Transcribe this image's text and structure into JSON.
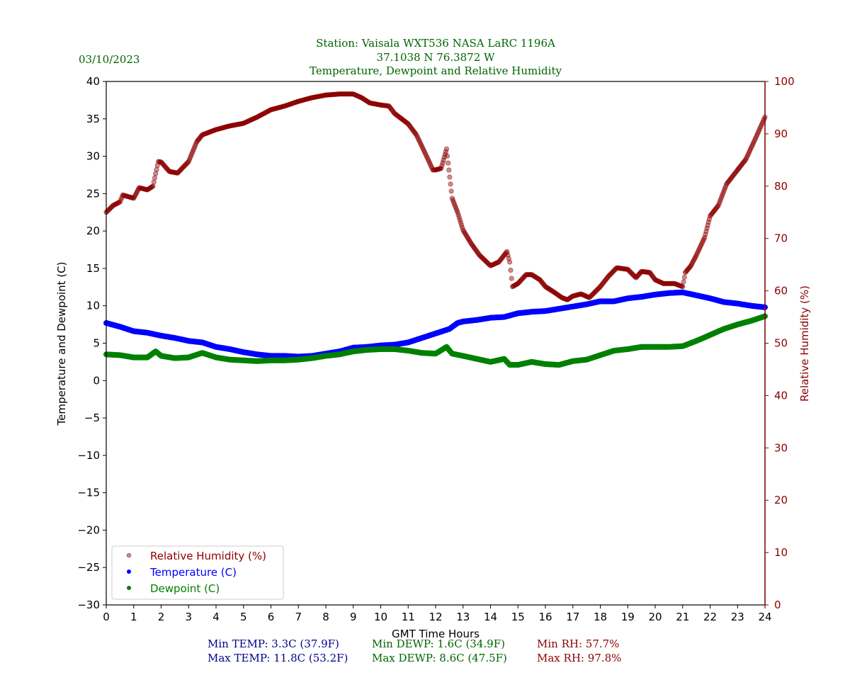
{
  "header": {
    "date": "03/10/2023",
    "title_line1": "Station:  Vaisala WXT536  NASA LaRC 1196A",
    "title_line2": "37.1038 N 76.3872 W",
    "title_line3": "Temperature, Dewpoint and Relative Humidity"
  },
  "stats": {
    "min_temp": "Min TEMP: 3.3C (37.9F)",
    "max_temp": "Max TEMP: 11.8C (53.2F)",
    "min_dewp": "Min DEWP: 1.6C (34.9F)",
    "max_dewp": "Max DEWP: 8.6C (47.5F)",
    "min_rh": "Min RH: 57.7%",
    "max_rh": "Max RH: 97.8%"
  },
  "colors": {
    "title": "#006400",
    "temperature": "#0000ff",
    "dewpoint": "#008000",
    "rh": "#8b0000",
    "stats_temp": "#00008b"
  },
  "chart_data": {
    "type": "scatter",
    "title": "Temperature, Dewpoint and Relative Humidity",
    "xlabel": "GMT Time Hours",
    "ylabel": "Temperature and Dewpoint (C)",
    "y2label": "Relative Humidity (%)",
    "xlim": [
      0,
      24
    ],
    "ylim": [
      -30,
      40
    ],
    "y2lim": [
      0,
      100
    ],
    "x_ticks": [
      "0",
      "1",
      "2",
      "3",
      "4",
      "5",
      "6",
      "7",
      "8",
      "9",
      "10",
      "11",
      "12",
      "13",
      "14",
      "15",
      "16",
      "17",
      "18",
      "19",
      "20",
      "21",
      "22",
      "23",
      "24"
    ],
    "y_ticks": [
      "40",
      "35",
      "30",
      "25",
      "20",
      "15",
      "10",
      "5",
      "0",
      "−5",
      "−10",
      "−15",
      "−20",
      "−25",
      "−30"
    ],
    "y2_ticks": [
      "100",
      "90",
      "80",
      "70",
      "60",
      "50",
      "40",
      "30",
      "20",
      "10",
      "0"
    ],
    "grid": false,
    "legend_position": "lower-left",
    "legend": [
      "Relative Humidity (%)",
      "Temperature (C)",
      "Dewpoint (C)"
    ],
    "series": [
      {
        "name": "Relative Humidity (%)",
        "axis": "right",
        "x": [
          0,
          0.25,
          0.5,
          0.6,
          1,
          1.2,
          1.5,
          1.7,
          1.8,
          1.9,
          2,
          2.3,
          2.6,
          3,
          3.3,
          3.5,
          4,
          4.5,
          5,
          5.5,
          6,
          6.5,
          7,
          7.5,
          8,
          8.5,
          9,
          9.3,
          9.6,
          10,
          10.3,
          10.5,
          11,
          11.3,
          11.6,
          11.9,
          12,
          12.2,
          12.4,
          12.6,
          12.8,
          13,
          13.3,
          13.6,
          14,
          14.3,
          14.6,
          14.7,
          14.8,
          15,
          15.3,
          15.5,
          15.8,
          16,
          16.3,
          16.6,
          16.8,
          17,
          17.3,
          17.6,
          18,
          18.3,
          18.6,
          19,
          19.3,
          19.5,
          19.8,
          20,
          20.3,
          20.7,
          21,
          21.1,
          21.3,
          21.5,
          21.8,
          22,
          22.3,
          22.6,
          23,
          23.3,
          23.6,
          24
        ],
        "y": [
          75,
          76.3,
          77,
          78.3,
          77.7,
          79.7,
          79.3,
          80,
          82.4,
          84.7,
          84.6,
          82.8,
          82.5,
          84.7,
          88.5,
          89.8,
          90.8,
          91.5,
          92,
          93.2,
          94.6,
          95.3,
          96.2,
          96.9,
          97.4,
          97.6,
          97.6,
          96.9,
          95.9,
          95.5,
          95.3,
          93.9,
          91.9,
          89.8,
          86.5,
          83.1,
          83.1,
          83.4,
          87.1,
          77.7,
          75,
          71.6,
          69,
          66.8,
          64.8,
          65.5,
          67.5,
          65.5,
          60.8,
          61.4,
          63.1,
          63.1,
          62.1,
          60.8,
          59.8,
          58.7,
          58.3,
          59,
          59.4,
          58.7,
          60.8,
          62.8,
          64.4,
          64.1,
          62.5,
          63.7,
          63.5,
          62.1,
          61.4,
          61.4,
          60.8,
          63.5,
          64.8,
          66.8,
          70.2,
          74.3,
          76.3,
          80.4,
          83.1,
          85.1,
          88.5,
          93.2
        ]
      },
      {
        "name": "Temperature (C)",
        "axis": "left",
        "x": [
          0,
          0.5,
          1,
          1.5,
          2,
          2.5,
          3,
          3.5,
          4,
          4.5,
          5,
          5.5,
          6,
          6.5,
          7,
          7.5,
          8,
          8.5,
          9,
          9.5,
          10,
          10.5,
          11,
          11.5,
          12,
          12.5,
          12.8,
          13,
          13.5,
          14,
          14.5,
          15,
          15.5,
          16,
          16.5,
          17,
          17.5,
          18,
          18.5,
          19,
          19.5,
          20,
          20.5,
          21,
          21.5,
          22,
          22.5,
          23,
          23.5,
          24
        ],
        "y": [
          7.7,
          7.2,
          6.6,
          6.4,
          6.0,
          5.7,
          5.3,
          5.1,
          4.5,
          4.2,
          3.8,
          3.5,
          3.3,
          3.3,
          3.2,
          3.3,
          3.6,
          3.9,
          4.4,
          4.5,
          4.7,
          4.8,
          5.1,
          5.7,
          6.3,
          6.9,
          7.7,
          7.9,
          8.1,
          8.4,
          8.5,
          9.0,
          9.2,
          9.3,
          9.6,
          9.9,
          10.2,
          10.6,
          10.6,
          11.0,
          11.2,
          11.5,
          11.7,
          11.8,
          11.4,
          11.0,
          10.5,
          10.3,
          10.0,
          9.8
        ]
      },
      {
        "name": "Dewpoint (C)",
        "axis": "left",
        "x": [
          0,
          0.5,
          1,
          1.5,
          1.8,
          2,
          2.5,
          3,
          3.5,
          4,
          4.5,
          5,
          5.5,
          6,
          6.5,
          7,
          7.5,
          8,
          8.5,
          9,
          9.5,
          10,
          10.5,
          11,
          11.5,
          12,
          12.4,
          12.6,
          13,
          13.5,
          14,
          14.5,
          14.7,
          15,
          15.5,
          16,
          16.5,
          17,
          17.5,
          18,
          18.5,
          19,
          19.5,
          20,
          20.5,
          21,
          21.5,
          22,
          22.5,
          23,
          23.5,
          24
        ],
        "y": [
          3.5,
          3.4,
          3.1,
          3.1,
          3.9,
          3.3,
          3.0,
          3.1,
          3.7,
          3.1,
          2.8,
          2.7,
          2.6,
          2.7,
          2.7,
          2.8,
          3.0,
          3.3,
          3.5,
          3.9,
          4.1,
          4.2,
          4.2,
          4.0,
          3.7,
          3.6,
          4.5,
          3.6,
          3.3,
          2.9,
          2.5,
          2.9,
          2.1,
          2.1,
          2.5,
          2.2,
          2.1,
          2.6,
          2.8,
          3.4,
          4.0,
          4.2,
          4.5,
          4.5,
          4.5,
          4.6,
          5.3,
          6.1,
          6.9,
          7.5,
          8.0,
          8.6
        ]
      }
    ]
  }
}
